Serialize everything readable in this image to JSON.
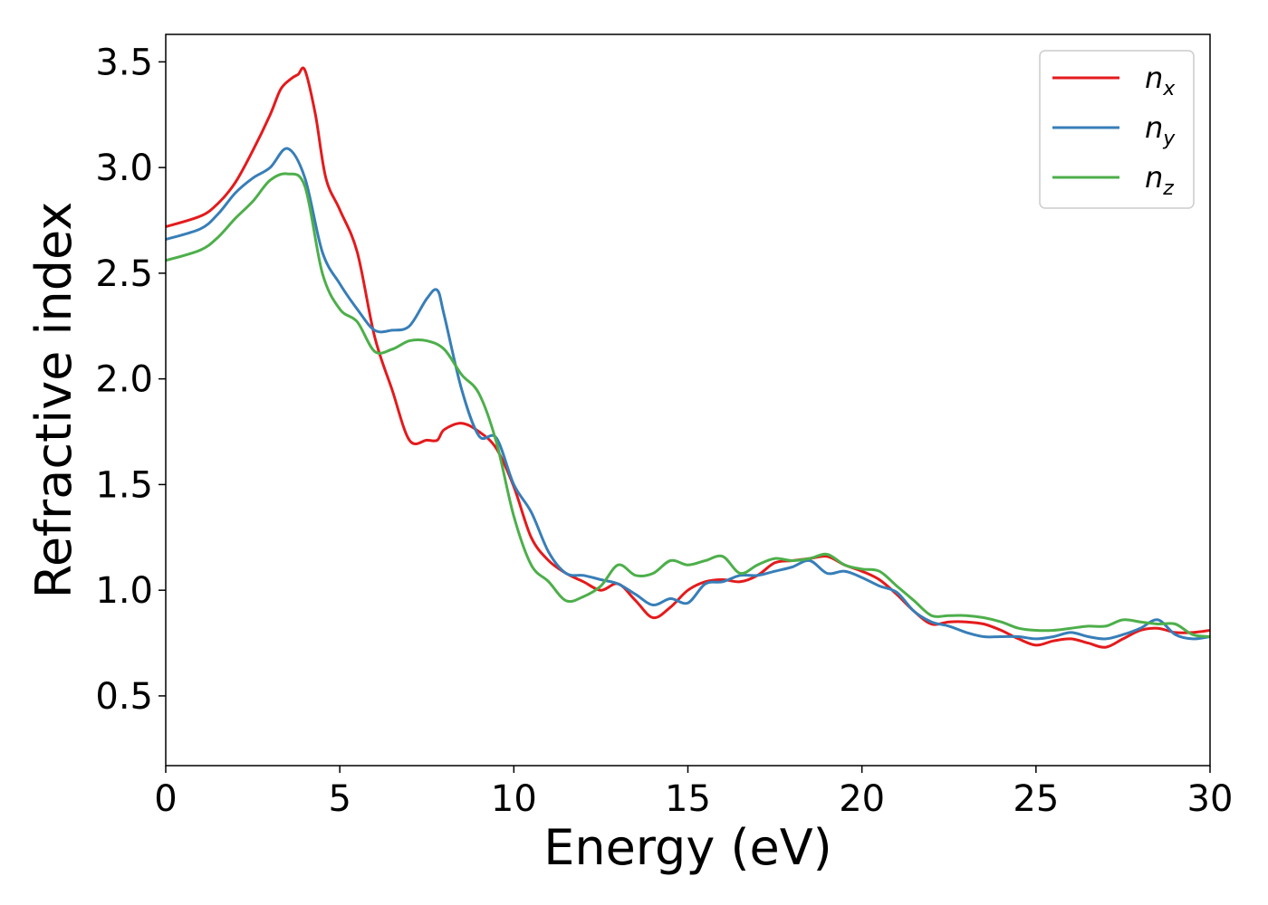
{
  "chart_data": {
    "type": "line",
    "title": "",
    "xlabel": "Energy (eV)",
    "ylabel": "Refractive index",
    "xlim": [
      0,
      30
    ],
    "ylim": [
      0.17,
      3.63
    ],
    "xticks": [
      0,
      5,
      10,
      15,
      20,
      25,
      30
    ],
    "xtick_labels": [
      "0",
      "5",
      "10",
      "15",
      "20",
      "25",
      "30"
    ],
    "yticks": [
      0.5,
      1.0,
      1.5,
      2.0,
      2.5,
      3.0,
      3.5
    ],
    "ytick_labels": [
      "0.5",
      "1.0",
      "1.5",
      "2.0",
      "2.5",
      "3.0",
      "3.5"
    ],
    "grid": false,
    "legend": "top-right",
    "series": [
      {
        "name": "n_x",
        "base": "n",
        "sub": "x",
        "color": "#e41a1c",
        "x": [
          0,
          1,
          1.5,
          2,
          2.5,
          3,
          3.3,
          3.6,
          3.8,
          4,
          4.3,
          4.6,
          5,
          5.5,
          6,
          6.5,
          7,
          7.5,
          7.8,
          8,
          8.5,
          9,
          9.5,
          10,
          10.5,
          11,
          11.5,
          12,
          12.5,
          13,
          13.5,
          14,
          14.5,
          15,
          15.5,
          16,
          16.5,
          17,
          17.5,
          18,
          18.5,
          19,
          19.5,
          20,
          20.5,
          21,
          21.5,
          22,
          22.5,
          23,
          23.5,
          24,
          24.5,
          25,
          25.5,
          26,
          26.5,
          27,
          27.5,
          28,
          28.5,
          29,
          29.5,
          30
        ],
        "y": [
          2.72,
          2.77,
          2.83,
          2.93,
          3.08,
          3.25,
          3.37,
          3.42,
          3.44,
          3.46,
          3.25,
          2.95,
          2.8,
          2.6,
          2.2,
          1.95,
          1.71,
          1.71,
          1.71,
          1.76,
          1.79,
          1.75,
          1.67,
          1.49,
          1.25,
          1.14,
          1.08,
          1.04,
          1.0,
          1.03,
          0.95,
          0.87,
          0.92,
          1.0,
          1.04,
          1.05,
          1.04,
          1.07,
          1.13,
          1.14,
          1.15,
          1.16,
          1.12,
          1.09,
          1.05,
          0.98,
          0.9,
          0.84,
          0.85,
          0.85,
          0.84,
          0.81,
          0.77,
          0.74,
          0.76,
          0.77,
          0.75,
          0.73,
          0.77,
          0.81,
          0.82,
          0.8,
          0.8,
          0.81
        ]
      },
      {
        "name": "n_y",
        "base": "n",
        "sub": "y",
        "color": "#377eb8",
        "x": [
          0,
          1,
          1.5,
          2,
          2.5,
          3,
          3.5,
          4,
          4.5,
          5,
          5.5,
          6,
          6.5,
          7,
          7.5,
          7.8,
          8,
          8.5,
          9,
          9.5,
          10,
          10.5,
          11,
          11.5,
          12,
          12.5,
          13,
          13.5,
          14,
          14.5,
          15,
          15.5,
          16,
          16.5,
          17,
          17.5,
          18,
          18.5,
          19,
          19.5,
          20,
          20.5,
          21,
          21.5,
          22,
          22.5,
          23,
          23.5,
          24,
          24.5,
          25,
          25.5,
          26,
          26.5,
          27,
          27.5,
          28,
          28.5,
          29,
          29.5,
          30
        ],
        "y": [
          2.66,
          2.71,
          2.78,
          2.88,
          2.95,
          3.0,
          3.09,
          2.95,
          2.6,
          2.45,
          2.33,
          2.23,
          2.23,
          2.25,
          2.38,
          2.42,
          2.3,
          1.95,
          1.73,
          1.72,
          1.5,
          1.37,
          1.18,
          1.08,
          1.07,
          1.05,
          1.03,
          0.98,
          0.93,
          0.96,
          0.94,
          1.03,
          1.04,
          1.07,
          1.07,
          1.09,
          1.11,
          1.14,
          1.08,
          1.09,
          1.06,
          1.02,
          0.99,
          0.9,
          0.85,
          0.83,
          0.8,
          0.78,
          0.78,
          0.78,
          0.77,
          0.78,
          0.8,
          0.78,
          0.77,
          0.79,
          0.82,
          0.86,
          0.79,
          0.77,
          0.78
        ]
      },
      {
        "name": "n_z",
        "base": "n",
        "sub": "z",
        "color": "#4daf4a",
        "x": [
          0,
          1,
          1.5,
          2,
          2.5,
          3,
          3.5,
          4,
          4.5,
          5,
          5.5,
          6,
          6.5,
          7,
          7.5,
          8,
          8.5,
          9,
          9.5,
          10,
          10.5,
          11,
          11.5,
          12,
          12.5,
          13,
          13.5,
          14,
          14.5,
          15,
          15.5,
          16,
          16.5,
          17,
          17.5,
          18,
          18.5,
          19,
          19.5,
          20,
          20.5,
          21,
          21.5,
          22,
          22.5,
          23,
          23.5,
          24,
          24.5,
          25,
          25.5,
          26,
          26.5,
          27,
          27.5,
          28,
          28.5,
          29,
          29.5,
          30
        ],
        "y": [
          2.56,
          2.61,
          2.67,
          2.76,
          2.84,
          2.94,
          2.97,
          2.91,
          2.5,
          2.33,
          2.27,
          2.13,
          2.14,
          2.18,
          2.18,
          2.14,
          2.02,
          1.93,
          1.7,
          1.35,
          1.12,
          1.04,
          0.95,
          0.97,
          1.02,
          1.12,
          1.07,
          1.08,
          1.14,
          1.12,
          1.14,
          1.16,
          1.08,
          1.12,
          1.15,
          1.14,
          1.15,
          1.17,
          1.12,
          1.1,
          1.09,
          1.02,
          0.95,
          0.88,
          0.88,
          0.88,
          0.87,
          0.85,
          0.82,
          0.81,
          0.81,
          0.82,
          0.83,
          0.83,
          0.86,
          0.85,
          0.84,
          0.84,
          0.79,
          0.78
        ]
      }
    ]
  }
}
